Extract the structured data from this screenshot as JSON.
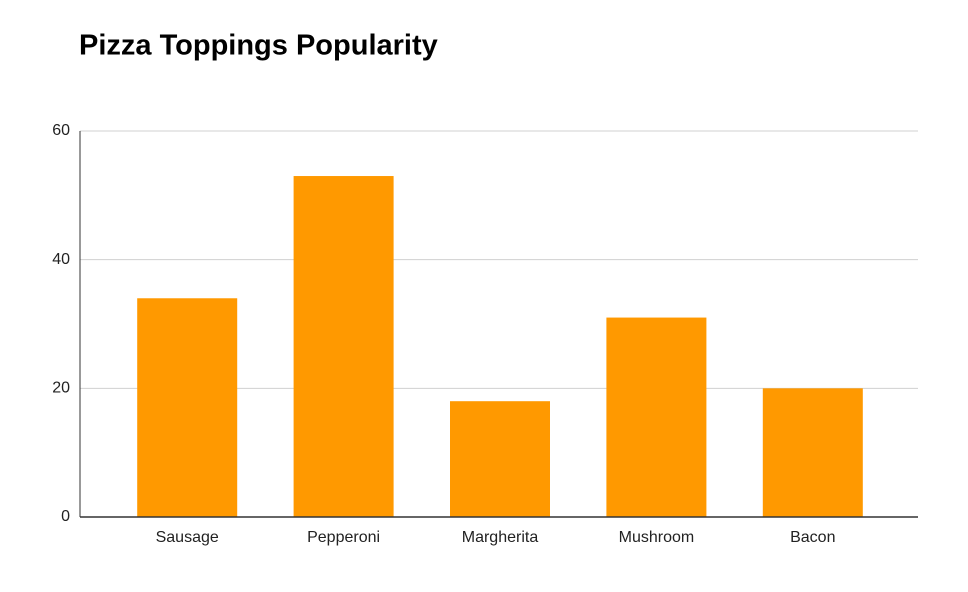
{
  "chart_data": {
    "type": "bar",
    "title": "Pizza Toppings Popularity",
    "categories": [
      "Sausage",
      "Pepperoni",
      "Margherita",
      "Mushroom",
      "Bacon"
    ],
    "values": [
      34,
      53,
      18,
      31,
      20
    ],
    "color": "#ff9900",
    "ylim": [
      0,
      60
    ],
    "yticks": [
      0,
      20,
      40,
      60
    ],
    "grid": true
  }
}
